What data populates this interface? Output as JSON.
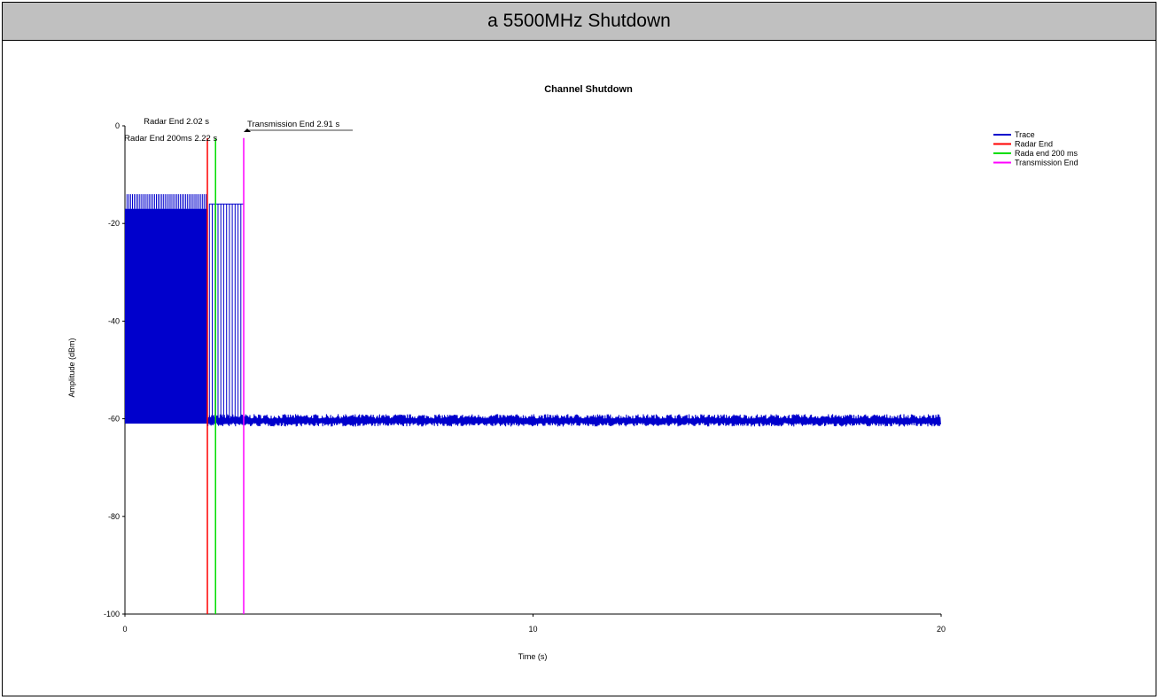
{
  "header": {
    "title": "a 5500MHz Shutdown"
  },
  "chart_data": {
    "type": "line",
    "title": "Channel Shutdown",
    "xlabel": "Time (s)",
    "ylabel": "Amplitude (dBm)",
    "xlim": [
      0,
      20
    ],
    "ylim": [
      -100,
      0
    ],
    "xticks": [
      "0",
      "10",
      "20"
    ],
    "yticks": [
      "0",
      "-20",
      "-40",
      "-60",
      "-80",
      "-100"
    ],
    "grid": false,
    "legend_position": "top-right",
    "series": [
      {
        "name": "Trace",
        "color": "#0000cc",
        "description_values": {
          "burst_top_dBm": -17,
          "burst_peak_dBm": -14,
          "burst_bottom_dBm": -61,
          "noise_floor_dBm": -60.5,
          "burst_end_s": 2.91
        }
      },
      {
        "name": "Radar End",
        "color": "#ff0000",
        "x": 2.02
      },
      {
        "name": "Rada end 200 ms",
        "color": "#00dd00",
        "x": 2.22
      },
      {
        "name": "Transmission End",
        "color": "#ff00ff",
        "x": 2.91
      }
    ],
    "annotations": [
      {
        "text": "Radar End 2.02 s",
        "x": 2.02
      },
      {
        "text": "Radar End 200ms 2.22 s",
        "x": 2.22
      },
      {
        "text": "Transmission End 2.91 s",
        "x": 2.91
      }
    ]
  }
}
